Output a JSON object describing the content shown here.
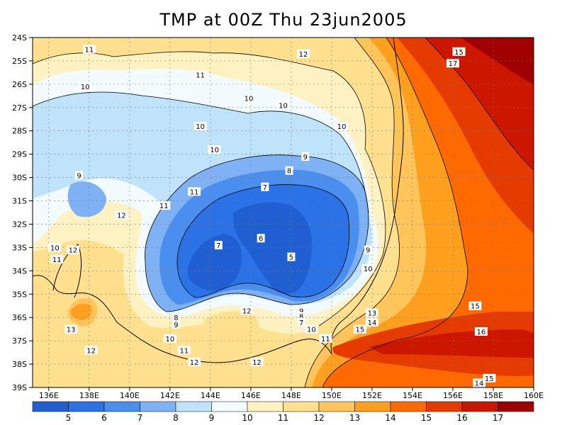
{
  "title": "TMP at 00Z Thu 23jun2005",
  "colors": {
    "bins": [
      "#1f5fd2",
      "#2b72e6",
      "#4a8ef0",
      "#7fb2f5",
      "#bfe3fb",
      "#f2fbff",
      "#fff2c2",
      "#ffe08f",
      "#ffc45a",
      "#ff9f1e",
      "#ff6a00",
      "#e63b00",
      "#cc1600",
      "#a00000"
    ],
    "land_outline": "#000000",
    "grid": "#7a7a7a"
  },
  "chart_data": {
    "type": "heatmap",
    "variable": "TMP",
    "x_ticks": [
      "136E",
      "138E",
      "140E",
      "142E",
      "144E",
      "146E",
      "148E",
      "150E",
      "152E",
      "154E",
      "156E",
      "158E",
      "160E"
    ],
    "y_ticks": [
      "24S",
      "25S",
      "26S",
      "27S",
      "28S",
      "29S",
      "30S",
      "31S",
      "32S",
      "33S",
      "34S",
      "35S",
      "36S",
      "37S",
      "38S",
      "39S"
    ],
    "xlim": [
      135.2,
      160
    ],
    "ylim": [
      -39,
      -24
    ],
    "colorbar_ticks": [
      "5",
      "6",
      "7",
      "8",
      "9",
      "10",
      "11",
      "12",
      "13",
      "14",
      "15",
      "16",
      "17"
    ],
    "contour_labels": [
      {
        "text": "11",
        "lon": 138.0,
        "lat": -24.5
      },
      {
        "text": "12",
        "lon": 148.6,
        "lat": -24.7
      },
      {
        "text": "15",
        "lon": 156.3,
        "lat": -24.6
      },
      {
        "text": "17",
        "lon": 156.0,
        "lat": -25.1
      },
      {
        "text": "11",
        "lon": 143.5,
        "lat": -25.6
      },
      {
        "text": "10",
        "lon": 137.8,
        "lat": -26.1
      },
      {
        "text": "10",
        "lon": 145.9,
        "lat": -26.6
      },
      {
        "text": "10",
        "lon": 147.6,
        "lat": -26.9
      },
      {
        "text": "10",
        "lon": 143.5,
        "lat": -27.8
      },
      {
        "text": "10",
        "lon": 150.5,
        "lat": -27.8
      },
      {
        "text": "10",
        "lon": 144.2,
        "lat": -28.8
      },
      {
        "text": "9",
        "lon": 148.7,
        "lat": -29.1
      },
      {
        "text": "8",
        "lon": 147.9,
        "lat": -29.7
      },
      {
        "text": "9",
        "lon": 137.5,
        "lat": -29.9
      },
      {
        "text": "7",
        "lon": 146.7,
        "lat": -30.4
      },
      {
        "text": "11",
        "lon": 143.2,
        "lat": -30.6
      },
      {
        "text": "11",
        "lon": 141.7,
        "lat": -31.2
      },
      {
        "text": "12",
        "lon": 139.6,
        "lat": -31.6
      },
      {
        "text": "6",
        "lon": 146.5,
        "lat": -32.6
      },
      {
        "text": "7",
        "lon": 144.4,
        "lat": -32.9
      },
      {
        "text": "10",
        "lon": 136.3,
        "lat": -33.0
      },
      {
        "text": "12",
        "lon": 137.2,
        "lat": -33.1
      },
      {
        "text": "9",
        "lon": 151.8,
        "lat": -33.1
      },
      {
        "text": "11",
        "lon": 136.4,
        "lat": -33.5
      },
      {
        "text": "5",
        "lon": 148.0,
        "lat": -33.4
      },
      {
        "text": "10",
        "lon": 151.8,
        "lat": -33.9
      },
      {
        "text": "8",
        "lon": 142.3,
        "lat": -36.0
      },
      {
        "text": "9",
        "lon": 142.3,
        "lat": -36.3
      },
      {
        "text": "12",
        "lon": 145.8,
        "lat": -35.7
      },
      {
        "text": "9",
        "lon": 148.5,
        "lat": -35.7
      },
      {
        "text": "8",
        "lon": 148.5,
        "lat": -35.95
      },
      {
        "text": "7",
        "lon": 148.5,
        "lat": -36.2
      },
      {
        "text": "13",
        "lon": 152.0,
        "lat": -35.8
      },
      {
        "text": "14",
        "lon": 152.0,
        "lat": -36.2
      },
      {
        "text": "15",
        "lon": 151.4,
        "lat": -36.5
      },
      {
        "text": "10",
        "lon": 149.0,
        "lat": -36.5
      },
      {
        "text": "11",
        "lon": 149.7,
        "lat": -36.9
      },
      {
        "text": "13",
        "lon": 137.1,
        "lat": -36.5
      },
      {
        "text": "10",
        "lon": 142.0,
        "lat": -36.9
      },
      {
        "text": "15",
        "lon": 157.1,
        "lat": -35.5
      },
      {
        "text": "16",
        "lon": 157.4,
        "lat": -36.6
      },
      {
        "text": "11",
        "lon": 142.7,
        "lat": -37.4
      },
      {
        "text": "12",
        "lon": 138.1,
        "lat": -37.4
      },
      {
        "text": "12",
        "lon": 143.2,
        "lat": -37.9
      },
      {
        "text": "12",
        "lon": 146.3,
        "lat": -37.9
      },
      {
        "text": "15",
        "lon": 157.8,
        "lat": -38.6
      },
      {
        "text": "14",
        "lon": 157.3,
        "lat": -38.8
      }
    ]
  }
}
